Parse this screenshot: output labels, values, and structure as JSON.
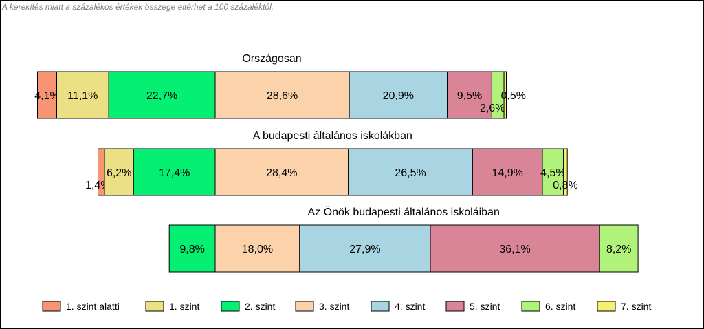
{
  "note": "A kerekítés miatt a  százalékos értékek összege eltérhet a 100 százaléktól.",
  "chart_data": {
    "type": "bar",
    "orientation": "horizontal",
    "stacked": true,
    "legend_position": "bottom",
    "categories": [
      "1. szint alatti",
      "1. szint",
      "2. szint",
      "3. szint",
      "4. szint",
      "5. szint",
      "6. szint",
      "7. szint"
    ],
    "colors": [
      "#f79473",
      "#ece085",
      "#05ef72",
      "#fcd2aa",
      "#a9d5e3",
      "#d98497",
      "#b0f27a",
      "#f6ef6f"
    ],
    "groups": [
      {
        "title": "Országosan",
        "values": [
          4.1,
          11.1,
          22.7,
          28.6,
          20.9,
          9.5,
          2.6,
          0.5
        ],
        "labels": [
          "4,1%",
          "11,1%",
          "22,7%",
          "28,6%",
          "20,9%",
          "9,5%",
          "2,6%",
          "0,5%"
        ]
      },
      {
        "title": "A budapesti általános iskolákban",
        "values": [
          1.4,
          6.2,
          17.4,
          28.4,
          26.5,
          14.9,
          4.5,
          0.8
        ],
        "labels": [
          "1,4%",
          "6,2%",
          "17,4%",
          "28,4%",
          "26,5%",
          "14,9%",
          "4,5%",
          "0,8%"
        ]
      },
      {
        "title": "Az Önök budapesti általános iskoláiban",
        "values": [
          0,
          0,
          9.8,
          18.0,
          27.9,
          36.1,
          8.2,
          0
        ],
        "labels": [
          "",
          "",
          "9,8%",
          "18,0%",
          "27,9%",
          "36,1%",
          "8,2%",
          ""
        ]
      }
    ]
  }
}
